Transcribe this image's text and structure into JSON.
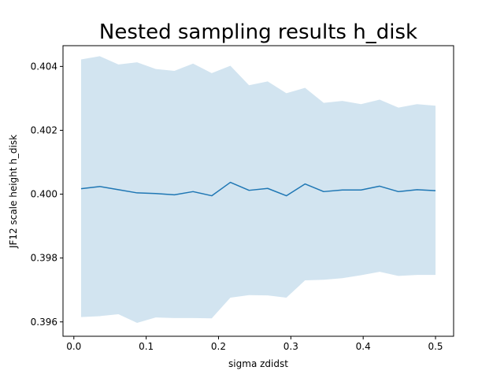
{
  "chart_data": {
    "type": "line",
    "title": "Nested sampling results h_disk",
    "xlabel": "sigma zdidst",
    "ylabel": "JF12 scale height h_disk",
    "xlim": [
      -0.015,
      0.525
    ],
    "ylim": [
      0.39555,
      0.40465
    ],
    "xticks": [
      0.0,
      0.1,
      0.2,
      0.3,
      0.4,
      0.5
    ],
    "xtick_labels": [
      "0.0",
      "0.1",
      "0.2",
      "0.3",
      "0.4",
      "0.5"
    ],
    "yticks": [
      0.396,
      0.398,
      0.4,
      0.402,
      0.404
    ],
    "ytick_labels": [
      "0.396",
      "0.398",
      "0.400",
      "0.402",
      "0.404"
    ],
    "grid": false,
    "colors": {
      "line": "#1f77b4",
      "band": "#1f77b4"
    },
    "x": [
      0.01,
      0.0358,
      0.0616,
      0.0874,
      0.1132,
      0.139,
      0.1648,
      0.1906,
      0.2164,
      0.2422,
      0.268,
      0.2938,
      0.3196,
      0.3454,
      0.3712,
      0.397,
      0.4228,
      0.4486,
      0.4744,
      0.5
    ],
    "series": [
      {
        "values": [
          0.40017,
          0.40024,
          0.40014,
          0.40004,
          0.40002,
          0.39998,
          0.40008,
          0.39995,
          0.40037,
          0.40012,
          0.40018,
          0.39995,
          0.40032,
          0.40008,
          0.40013,
          0.40013,
          0.40025,
          0.40008,
          0.40014,
          0.40011
        ]
      }
    ],
    "band": {
      "lower": [
        0.39615,
        0.39618,
        0.39624,
        0.39597,
        0.39614,
        0.39612,
        0.39612,
        0.39611,
        0.39676,
        0.39684,
        0.39683,
        0.39676,
        0.3973,
        0.39732,
        0.39737,
        0.39746,
        0.39757,
        0.39744,
        0.39747,
        0.39747
      ],
      "upper": [
        0.40422,
        0.40432,
        0.40406,
        0.40413,
        0.40392,
        0.40386,
        0.40409,
        0.40379,
        0.40402,
        0.40341,
        0.40353,
        0.40316,
        0.40333,
        0.40286,
        0.40292,
        0.40282,
        0.40296,
        0.40271,
        0.40282,
        0.40277
      ]
    }
  }
}
